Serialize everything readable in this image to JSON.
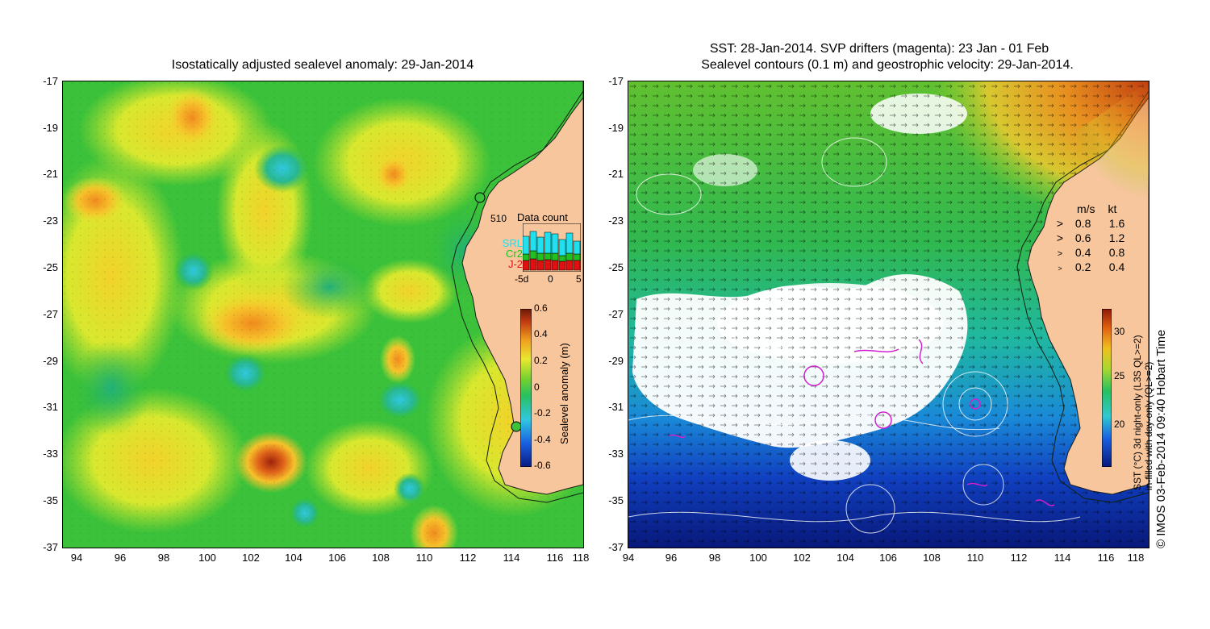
{
  "left_map": {
    "title": "Isostatically adjusted sealevel anomaly: 29-Jan-2014",
    "y_ticks": [
      "-17",
      "-19",
      "-21",
      "-23",
      "-25",
      "-27",
      "-29",
      "-31",
      "-33",
      "-35",
      "-37"
    ],
    "x_ticks": [
      "94",
      "96",
      "98",
      "100",
      "102",
      "104",
      "106",
      "108",
      "110",
      "112",
      "114",
      "116",
      "118"
    ],
    "data_count": {
      "title": "Data count",
      "max_label": "510",
      "legend": [
        "SRL",
        "Cr2",
        "J-2"
      ],
      "legend_colors": [
        "#20e0f0",
        "#20c020",
        "#e01010"
      ],
      "x_ticks": [
        "-5d",
        "0",
        "5"
      ]
    },
    "colorbar": {
      "label": "Sealevel anomaly (m)",
      "ticks": [
        "0.6",
        "0.4",
        "0.2",
        "0",
        "-0.2",
        "-0.4",
        "-0.6"
      ],
      "range": [
        -0.6,
        0.6
      ]
    }
  },
  "right_map": {
    "title_line1": "SST: 28-Jan-2014. SVP drifters (magenta): 23 Jan - 01 Feb",
    "title_line2": "Sealevel contours (0.1 m) and geostrophic velocity: 29-Jan-2014.",
    "y_ticks": [
      "-17",
      "-19",
      "-21",
      "-23",
      "-25",
      "-27",
      "-29",
      "-31",
      "-33",
      "-35",
      "-37"
    ],
    "x_ticks": [
      "94",
      "96",
      "98",
      "100",
      "102",
      "104",
      "106",
      "108",
      "110",
      "112",
      "114",
      "116",
      "118"
    ],
    "velocity_legend": {
      "header_ms": "m/s",
      "header_kt": "kt",
      "rows": [
        {
          "ms": "0.8",
          "kt": "1.6"
        },
        {
          "ms": "0.6",
          "kt": "1.2"
        },
        {
          "ms": "0.4",
          "kt": "0.8"
        },
        {
          "ms": "0.2",
          "kt": "0.4"
        }
      ]
    },
    "colorbar": {
      "label_line1": "SST (°C) 3d night-only (L3S QL>=2)",
      "label_line2": "in-filled with day-only (QL>=2)",
      "ticks": [
        "30",
        "25",
        "20"
      ],
      "range": [
        16,
        32
      ]
    },
    "credit": "© IMOS 03-Feb-2014 09:40 Hobart Time"
  },
  "colors": {
    "land": "#f7c69c",
    "sla_green": "#2cbd3c",
    "sst_white": "#ffffff"
  }
}
